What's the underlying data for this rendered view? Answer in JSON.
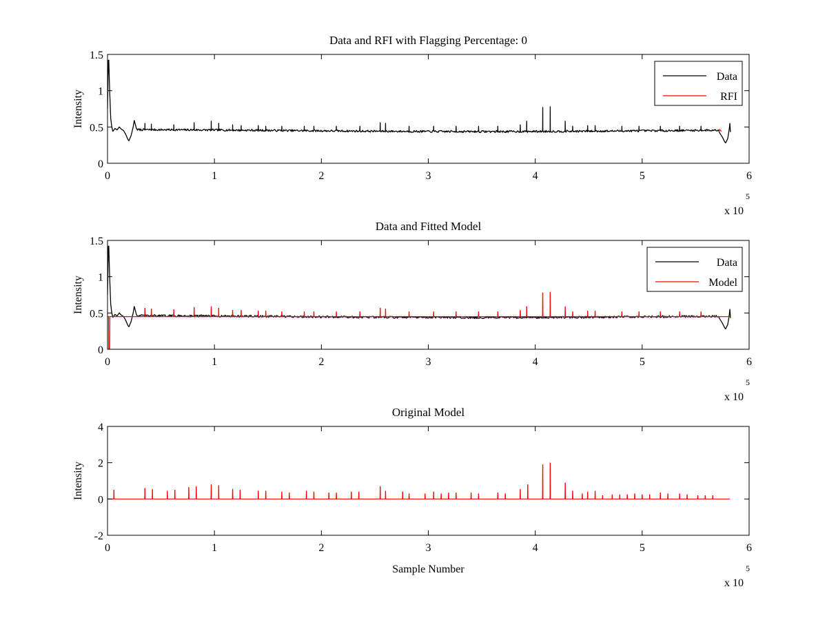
{
  "figure": {
    "x_multiplier": "x 10",
    "x_multiplier_exp": "5"
  },
  "chart_data": [
    {
      "type": "line",
      "title": "Data and RFI with Flagging Percentage: 0",
      "xlabel": "",
      "ylabel": "Intensity",
      "xlim": [
        0,
        6
      ],
      "ylim": [
        0,
        1.5
      ],
      "xticks": [
        "0",
        "1",
        "2",
        "3",
        "4",
        "5",
        "6"
      ],
      "yticks": [
        "0",
        "0.5",
        "1",
        "1.5"
      ],
      "legend_placement": "top-right",
      "grid": false,
      "series": [
        {
          "name": "Data",
          "color": "#000000",
          "baseline": 0.45,
          "start_peak": 1.42,
          "dips": [
            {
              "x": 0.2,
              "y": 0.31
            },
            {
              "x": 5.78,
              "y": 0.28
            }
          ],
          "bump_x": 0.25,
          "bump_y": 0.59,
          "end_x": 5.82,
          "end_y": 0.43,
          "spikes": [
            {
              "x": 0.35,
              "y": 0.55
            },
            {
              "x": 0.41,
              "y": 0.54
            },
            {
              "x": 0.62,
              "y": 0.53
            },
            {
              "x": 0.81,
              "y": 0.56
            },
            {
              "x": 0.97,
              "y": 0.58
            },
            {
              "x": 1.04,
              "y": 0.55
            },
            {
              "x": 1.17,
              "y": 0.53
            },
            {
              "x": 1.25,
              "y": 0.52
            },
            {
              "x": 1.41,
              "y": 0.52
            },
            {
              "x": 1.48,
              "y": 0.51
            },
            {
              "x": 1.63,
              "y": 0.51
            },
            {
              "x": 1.84,
              "y": 0.51
            },
            {
              "x": 1.93,
              "y": 0.51
            },
            {
              "x": 2.14,
              "y": 0.51
            },
            {
              "x": 2.36,
              "y": 0.51
            },
            {
              "x": 2.55,
              "y": 0.56
            },
            {
              "x": 2.6,
              "y": 0.55
            },
            {
              "x": 2.82,
              "y": 0.51
            },
            {
              "x": 3.05,
              "y": 0.51
            },
            {
              "x": 3.26,
              "y": 0.51
            },
            {
              "x": 3.47,
              "y": 0.51
            },
            {
              "x": 3.65,
              "y": 0.51
            },
            {
              "x": 3.86,
              "y": 0.53
            },
            {
              "x": 3.92,
              "y": 0.58
            },
            {
              "x": 4.07,
              "y": 0.77
            },
            {
              "x": 4.14,
              "y": 0.78
            },
            {
              "x": 4.28,
              "y": 0.58
            },
            {
              "x": 4.35,
              "y": 0.51
            },
            {
              "x": 4.49,
              "y": 0.52
            },
            {
              "x": 4.56,
              "y": 0.52
            },
            {
              "x": 4.81,
              "y": 0.51
            },
            {
              "x": 4.97,
              "y": 0.51
            },
            {
              "x": 5.17,
              "y": 0.51
            },
            {
              "x": 5.35,
              "y": 0.51
            },
            {
              "x": 5.55,
              "y": 0.51
            }
          ]
        },
        {
          "name": "RFI",
          "color": "#ff0000",
          "points": [
            {
              "x": 5.72,
              "y": 0.47
            }
          ]
        }
      ]
    },
    {
      "type": "line",
      "title": "Data and Fitted Model",
      "xlabel": "",
      "ylabel": "Intensity",
      "xlim": [
        0,
        6
      ],
      "ylim": [
        0,
        1.5
      ],
      "xticks": [
        "0",
        "1",
        "2",
        "3",
        "4",
        "5",
        "6"
      ],
      "yticks": [
        "0",
        "0.5",
        "1",
        "1.5"
      ],
      "legend_placement": "top-right",
      "grid": false,
      "series": [
        {
          "name": "Data",
          "color": "#000000",
          "baseline": 0.45,
          "start_peak": 1.42,
          "dips": [
            {
              "x": 0.2,
              "y": 0.31
            },
            {
              "x": 5.78,
              "y": 0.28
            }
          ],
          "bump_x": 0.25,
          "bump_y": 0.59,
          "end_x": 5.82,
          "end_y": 0.43
        },
        {
          "name": "Model",
          "color": "#ff0000",
          "baseline": 0.45,
          "start_drop": {
            "x": 0.02,
            "y": 0.0
          },
          "spikes": [
            {
              "x": 0.35,
              "y": 0.57
            },
            {
              "x": 0.41,
              "y": 0.56
            },
            {
              "x": 0.62,
              "y": 0.55
            },
            {
              "x": 0.81,
              "y": 0.58
            },
            {
              "x": 0.97,
              "y": 0.59
            },
            {
              "x": 1.04,
              "y": 0.57
            },
            {
              "x": 1.17,
              "y": 0.54
            },
            {
              "x": 1.25,
              "y": 0.54
            },
            {
              "x": 1.41,
              "y": 0.53
            },
            {
              "x": 1.48,
              "y": 0.53
            },
            {
              "x": 1.63,
              "y": 0.52
            },
            {
              "x": 1.84,
              "y": 0.52
            },
            {
              "x": 1.93,
              "y": 0.52
            },
            {
              "x": 2.14,
              "y": 0.52
            },
            {
              "x": 2.36,
              "y": 0.52
            },
            {
              "x": 2.55,
              "y": 0.57
            },
            {
              "x": 2.6,
              "y": 0.56
            },
            {
              "x": 2.82,
              "y": 0.52
            },
            {
              "x": 3.05,
              "y": 0.52
            },
            {
              "x": 3.26,
              "y": 0.52
            },
            {
              "x": 3.47,
              "y": 0.52
            },
            {
              "x": 3.65,
              "y": 0.52
            },
            {
              "x": 3.86,
              "y": 0.54
            },
            {
              "x": 3.92,
              "y": 0.59
            },
            {
              "x": 4.07,
              "y": 0.78
            },
            {
              "x": 4.14,
              "y": 0.79
            },
            {
              "x": 4.28,
              "y": 0.59
            },
            {
              "x": 4.35,
              "y": 0.52
            },
            {
              "x": 4.49,
              "y": 0.53
            },
            {
              "x": 4.56,
              "y": 0.53
            },
            {
              "x": 4.81,
              "y": 0.52
            },
            {
              "x": 4.97,
              "y": 0.52
            },
            {
              "x": 5.17,
              "y": 0.52
            },
            {
              "x": 5.35,
              "y": 0.52
            },
            {
              "x": 5.55,
              "y": 0.52
            }
          ]
        }
      ]
    },
    {
      "type": "line",
      "title": "Original Model",
      "xlabel": "Sample Number",
      "ylabel": "Intensity",
      "xlim": [
        0,
        6
      ],
      "ylim": [
        -2,
        4
      ],
      "xticks": [
        "0",
        "1",
        "2",
        "3",
        "4",
        "5",
        "6"
      ],
      "yticks": [
        "-2",
        "0",
        "2",
        "4"
      ],
      "grid": false,
      "series": [
        {
          "color": "#ff0000",
          "baseline": 0,
          "end_x": 5.82,
          "spikes": [
            {
              "x": 0.06,
              "y": 0.5
            },
            {
              "x": 0.35,
              "y": 0.6
            },
            {
              "x": 0.42,
              "y": 0.55
            },
            {
              "x": 0.56,
              "y": 0.45
            },
            {
              "x": 0.63,
              "y": 0.5
            },
            {
              "x": 0.76,
              "y": 0.65
            },
            {
              "x": 0.83,
              "y": 0.7
            },
            {
              "x": 0.97,
              "y": 0.8
            },
            {
              "x": 1.04,
              "y": 0.75
            },
            {
              "x": 1.17,
              "y": 0.55
            },
            {
              "x": 1.24,
              "y": 0.5
            },
            {
              "x": 1.41,
              "y": 0.45
            },
            {
              "x": 1.48,
              "y": 0.45
            },
            {
              "x": 1.63,
              "y": 0.4
            },
            {
              "x": 1.7,
              "y": 0.35
            },
            {
              "x": 1.86,
              "y": 0.45
            },
            {
              "x": 1.93,
              "y": 0.4
            },
            {
              "x": 2.07,
              "y": 0.35
            },
            {
              "x": 2.14,
              "y": 0.35
            },
            {
              "x": 2.28,
              "y": 0.4
            },
            {
              "x": 2.35,
              "y": 0.4
            },
            {
              "x": 2.55,
              "y": 0.7
            },
            {
              "x": 2.6,
              "y": 0.45
            },
            {
              "x": 2.76,
              "y": 0.4
            },
            {
              "x": 2.82,
              "y": 0.3
            },
            {
              "x": 2.97,
              "y": 0.3
            },
            {
              "x": 3.05,
              "y": 0.4
            },
            {
              "x": 3.12,
              "y": 0.3
            },
            {
              "x": 3.19,
              "y": 0.35
            },
            {
              "x": 3.26,
              "y": 0.35
            },
            {
              "x": 3.4,
              "y": 0.35
            },
            {
              "x": 3.47,
              "y": 0.3
            },
            {
              "x": 3.65,
              "y": 0.35
            },
            {
              "x": 3.72,
              "y": 0.3
            },
            {
              "x": 3.86,
              "y": 0.55
            },
            {
              "x": 3.93,
              "y": 0.8
            },
            {
              "x": 4.07,
              "y": 1.9
            },
            {
              "x": 4.14,
              "y": 2.0
            },
            {
              "x": 4.28,
              "y": 0.9
            },
            {
              "x": 4.35,
              "y": 0.45
            },
            {
              "x": 4.44,
              "y": 0.3
            },
            {
              "x": 4.49,
              "y": 0.4
            },
            {
              "x": 4.56,
              "y": 0.45
            },
            {
              "x": 4.63,
              "y": 0.2
            },
            {
              "x": 4.72,
              "y": 0.25
            },
            {
              "x": 4.79,
              "y": 0.25
            },
            {
              "x": 4.86,
              "y": 0.25
            },
            {
              "x": 4.93,
              "y": 0.3
            },
            {
              "x": 5.0,
              "y": 0.25
            },
            {
              "x": 5.07,
              "y": 0.25
            },
            {
              "x": 5.17,
              "y": 0.35
            },
            {
              "x": 5.24,
              "y": 0.3
            },
            {
              "x": 5.35,
              "y": 0.3
            },
            {
              "x": 5.42,
              "y": 0.25
            },
            {
              "x": 5.52,
              "y": 0.2
            },
            {
              "x": 5.59,
              "y": 0.2
            },
            {
              "x": 5.66,
              "y": 0.2
            }
          ]
        }
      ]
    }
  ]
}
